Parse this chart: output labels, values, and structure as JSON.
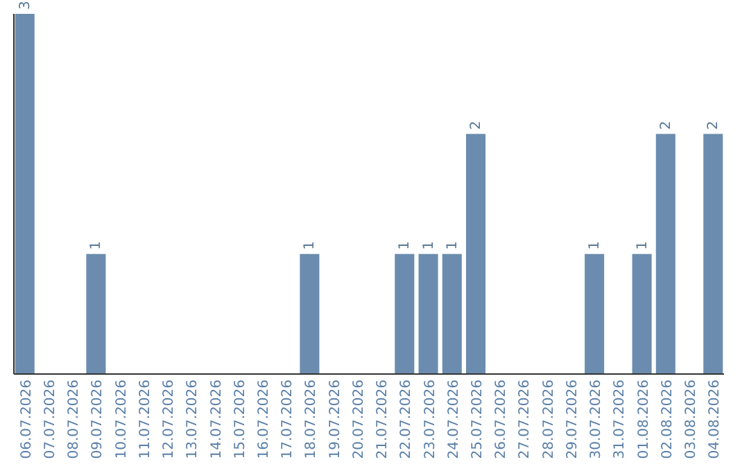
{
  "chart_data": {
    "type": "bar",
    "categories": [
      "06.07.2026",
      "07.07.2026",
      "08.07.2026",
      "09.07.2026",
      "10.07.2026",
      "11.07.2026",
      "12.07.2026",
      "13.07.2026",
      "14.07.2026",
      "15.07.2026",
      "16.07.2026",
      "17.07.2026",
      "18.07.2026",
      "19.07.2026",
      "20.07.2026",
      "21.07.2026",
      "22.07.2026",
      "23.07.2026",
      "24.07.2026",
      "25.07.2026",
      "26.07.2026",
      "27.07.2026",
      "28.07.2026",
      "29.07.2026",
      "30.07.2026",
      "31.07.2026",
      "01.08.2026",
      "02.08.2026",
      "03.08.2026",
      "04.08.2026"
    ],
    "values": [
      3,
      0,
      0,
      1,
      0,
      0,
      0,
      0,
      0,
      0,
      0,
      0,
      1,
      0,
      0,
      0,
      1,
      1,
      1,
      2,
      0,
      0,
      0,
      0,
      1,
      0,
      1,
      2,
      0,
      2
    ],
    "value_labels": [
      "3",
      null,
      null,
      "1",
      null,
      null,
      null,
      null,
      null,
      null,
      null,
      null,
      "1",
      null,
      null,
      null,
      "1",
      "1",
      "1",
      "2",
      null,
      null,
      null,
      null,
      "1",
      null,
      "1",
      "2",
      null,
      "2"
    ],
    "color": "#6b8cae",
    "ylim": [
      0,
      3
    ],
    "tick_labels": "x"
  }
}
